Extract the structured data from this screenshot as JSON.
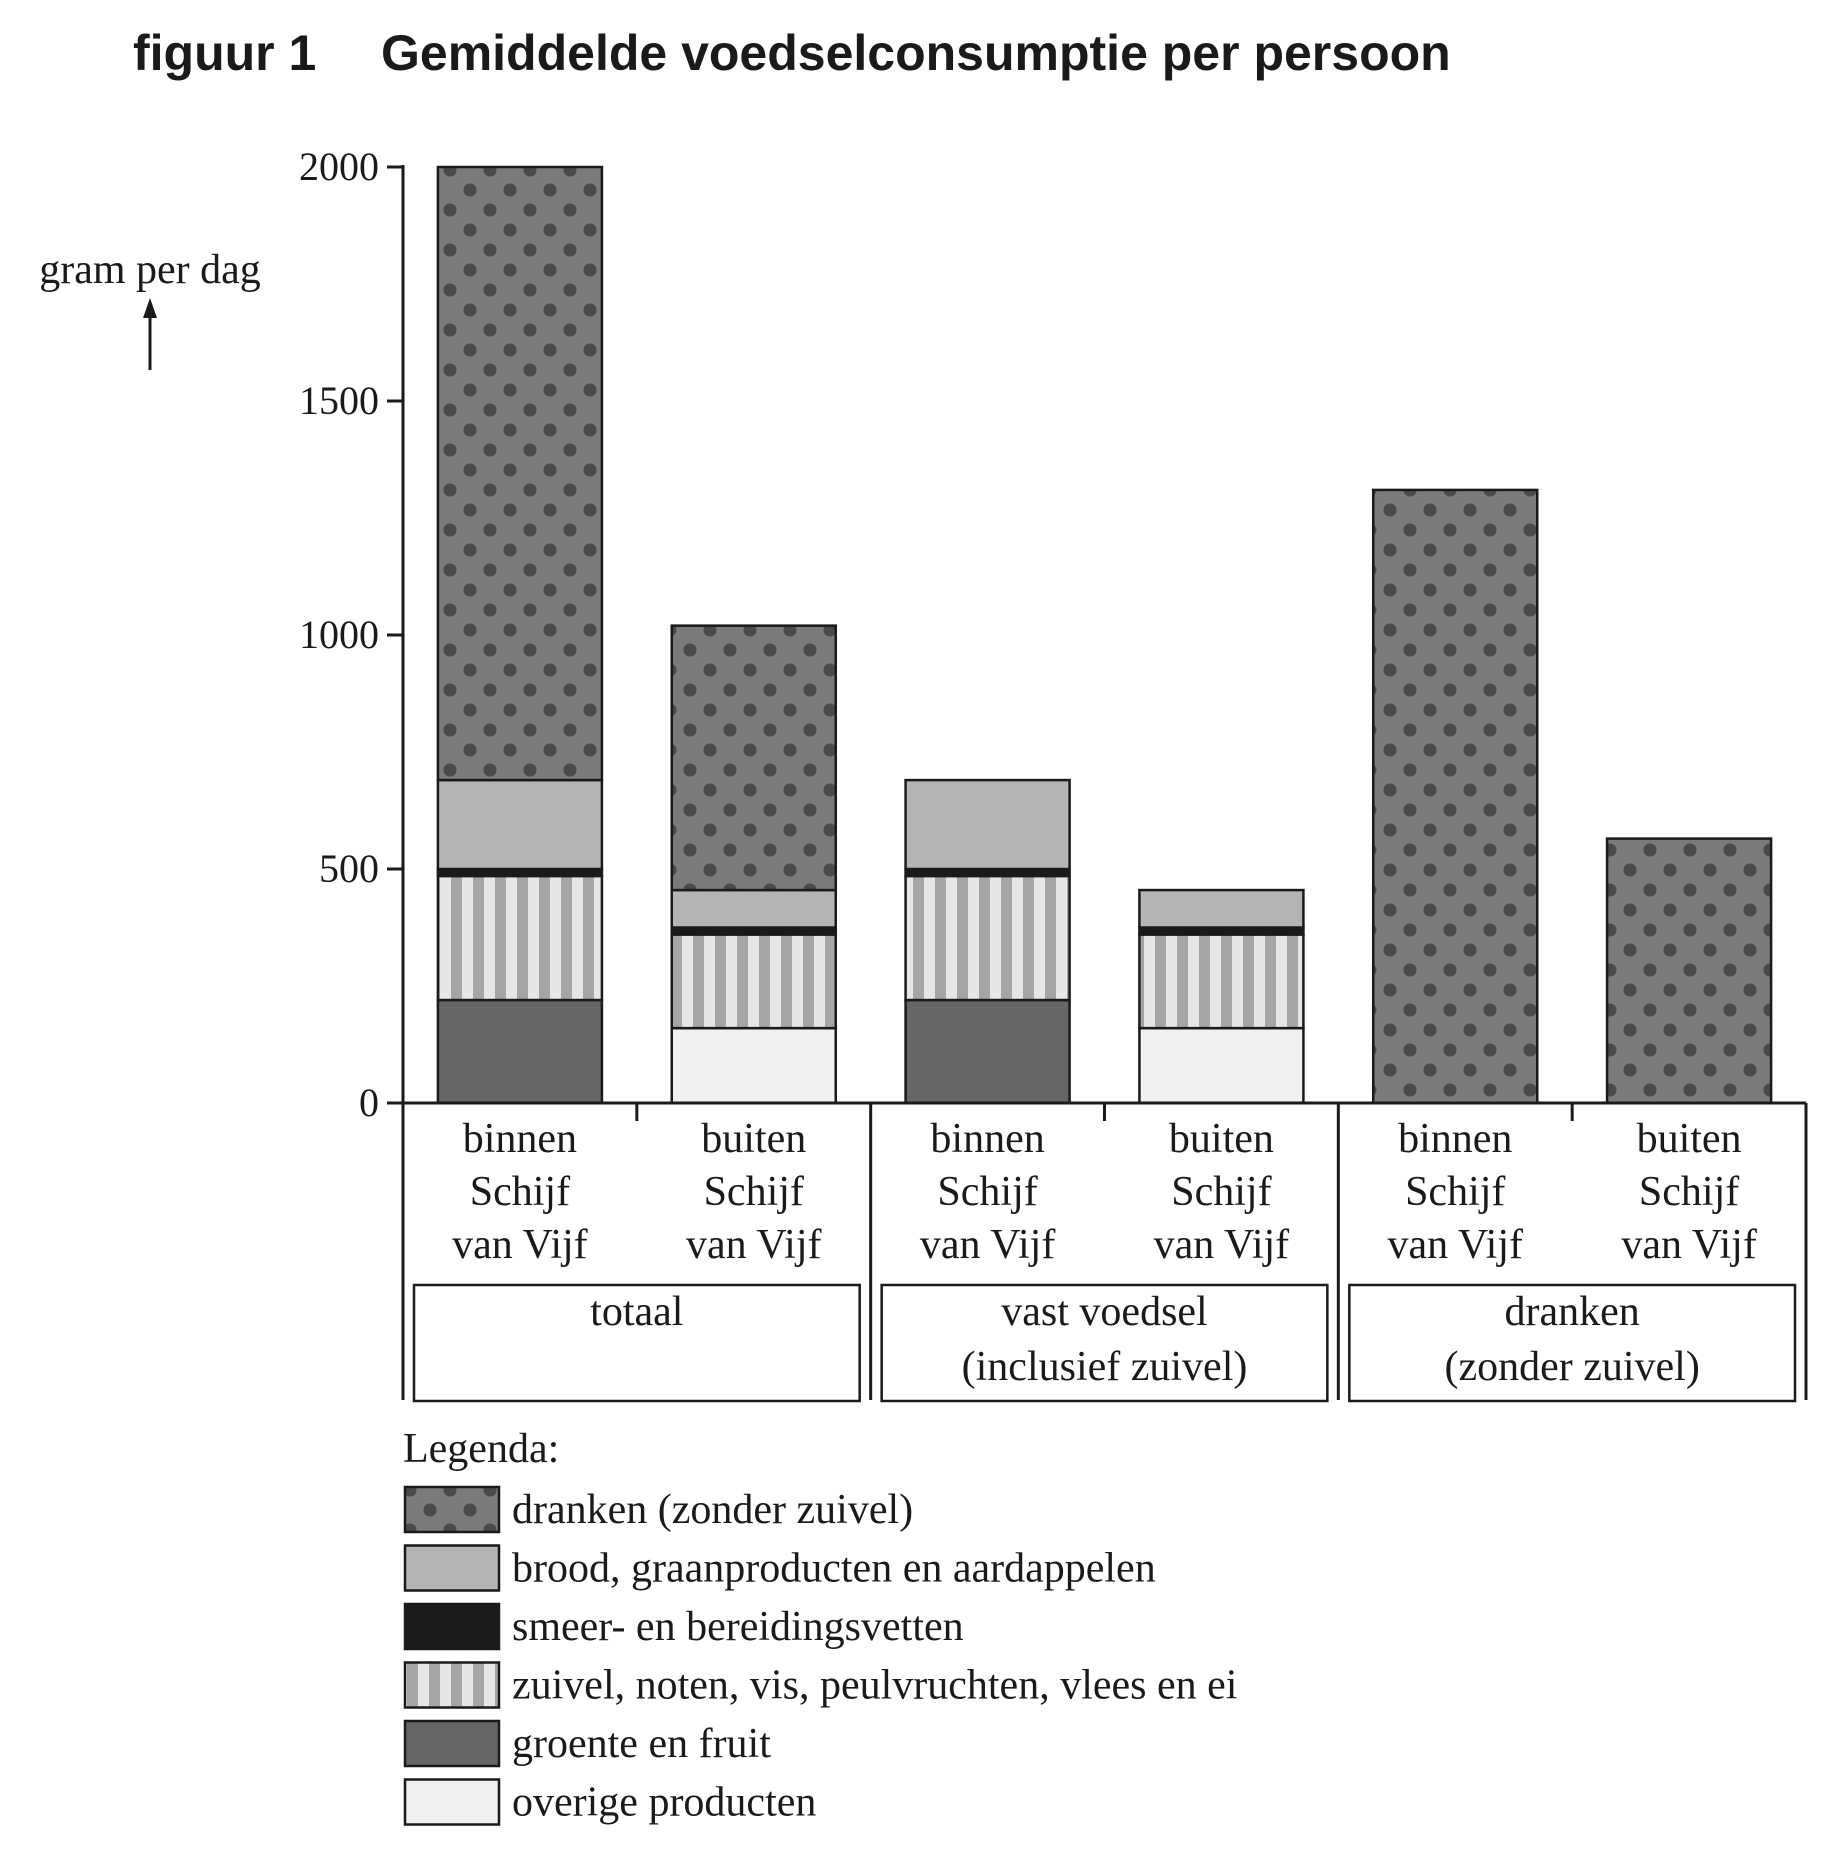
{
  "figure_label": "figuur 1",
  "chart_data": {
    "type": "bar",
    "stacked": true,
    "title": "Gemiddelde voedselconsumptie per persoon",
    "ylabel": "gram per dag",
    "xlabel": "",
    "ylim": [
      0,
      2000
    ],
    "yticks": [
      0,
      500,
      1000,
      1500,
      2000
    ],
    "categories": [
      [
        "binnen",
        "Schijf",
        "van Vijf"
      ],
      [
        "buiten",
        "Schijf",
        "van Vijf"
      ],
      [
        "binnen",
        "Schijf",
        "van Vijf"
      ],
      [
        "buiten",
        "Schijf",
        "van Vijf"
      ],
      [
        "binnen",
        "Schijf",
        "van Vijf"
      ],
      [
        "buiten",
        "Schijf",
        "van Vijf"
      ]
    ],
    "groups": [
      {
        "lines": [
          "totaal"
        ],
        "categories": [
          0,
          1
        ]
      },
      {
        "lines": [
          "vast voedsel",
          "(inclusief zuivel)"
        ],
        "categories": [
          2,
          3
        ]
      },
      {
        "lines": [
          "dranken",
          "(zonder zuivel)"
        ],
        "categories": [
          4,
          5
        ]
      }
    ],
    "series": [
      {
        "name": "overige producten",
        "pattern": "light",
        "values": [
          0,
          160,
          0,
          160,
          0,
          0
        ]
      },
      {
        "name": "groente en fruit",
        "pattern": "dark",
        "values": [
          220,
          0,
          220,
          0,
          0,
          0
        ]
      },
      {
        "name": "zuivel, noten, vis, peulvruchten, vlees en ei",
        "pattern": "stripes",
        "values": [
          265,
          200,
          265,
          200,
          0,
          0
        ]
      },
      {
        "name": "smeer- en bereidingsvetten",
        "pattern": "black",
        "values": [
          15,
          15,
          15,
          15,
          0,
          0
        ]
      },
      {
        "name": "brood, graanproducten en aardappelen",
        "pattern": "mid",
        "values": [
          190,
          80,
          190,
          80,
          0,
          0
        ]
      },
      {
        "name": "dranken (zonder zuivel)",
        "pattern": "dots",
        "values": [
          1310,
          565,
          0,
          0,
          1310,
          565
        ]
      }
    ],
    "legend": {
      "title": "Legenda:",
      "order": [
        5,
        4,
        3,
        2,
        1,
        0
      ]
    },
    "colors": {
      "axis": "#1a1a1a",
      "dots_bg": "#7b7b7b",
      "dots_fg": "#4a4a4a",
      "mid": "#b4b4b4",
      "black": "#1a1a1a",
      "stripe_light": "#e6e6e6",
      "stripe_dark": "#a5a5a5",
      "dark": "#666666",
      "light": "#f0f0f0"
    }
  }
}
